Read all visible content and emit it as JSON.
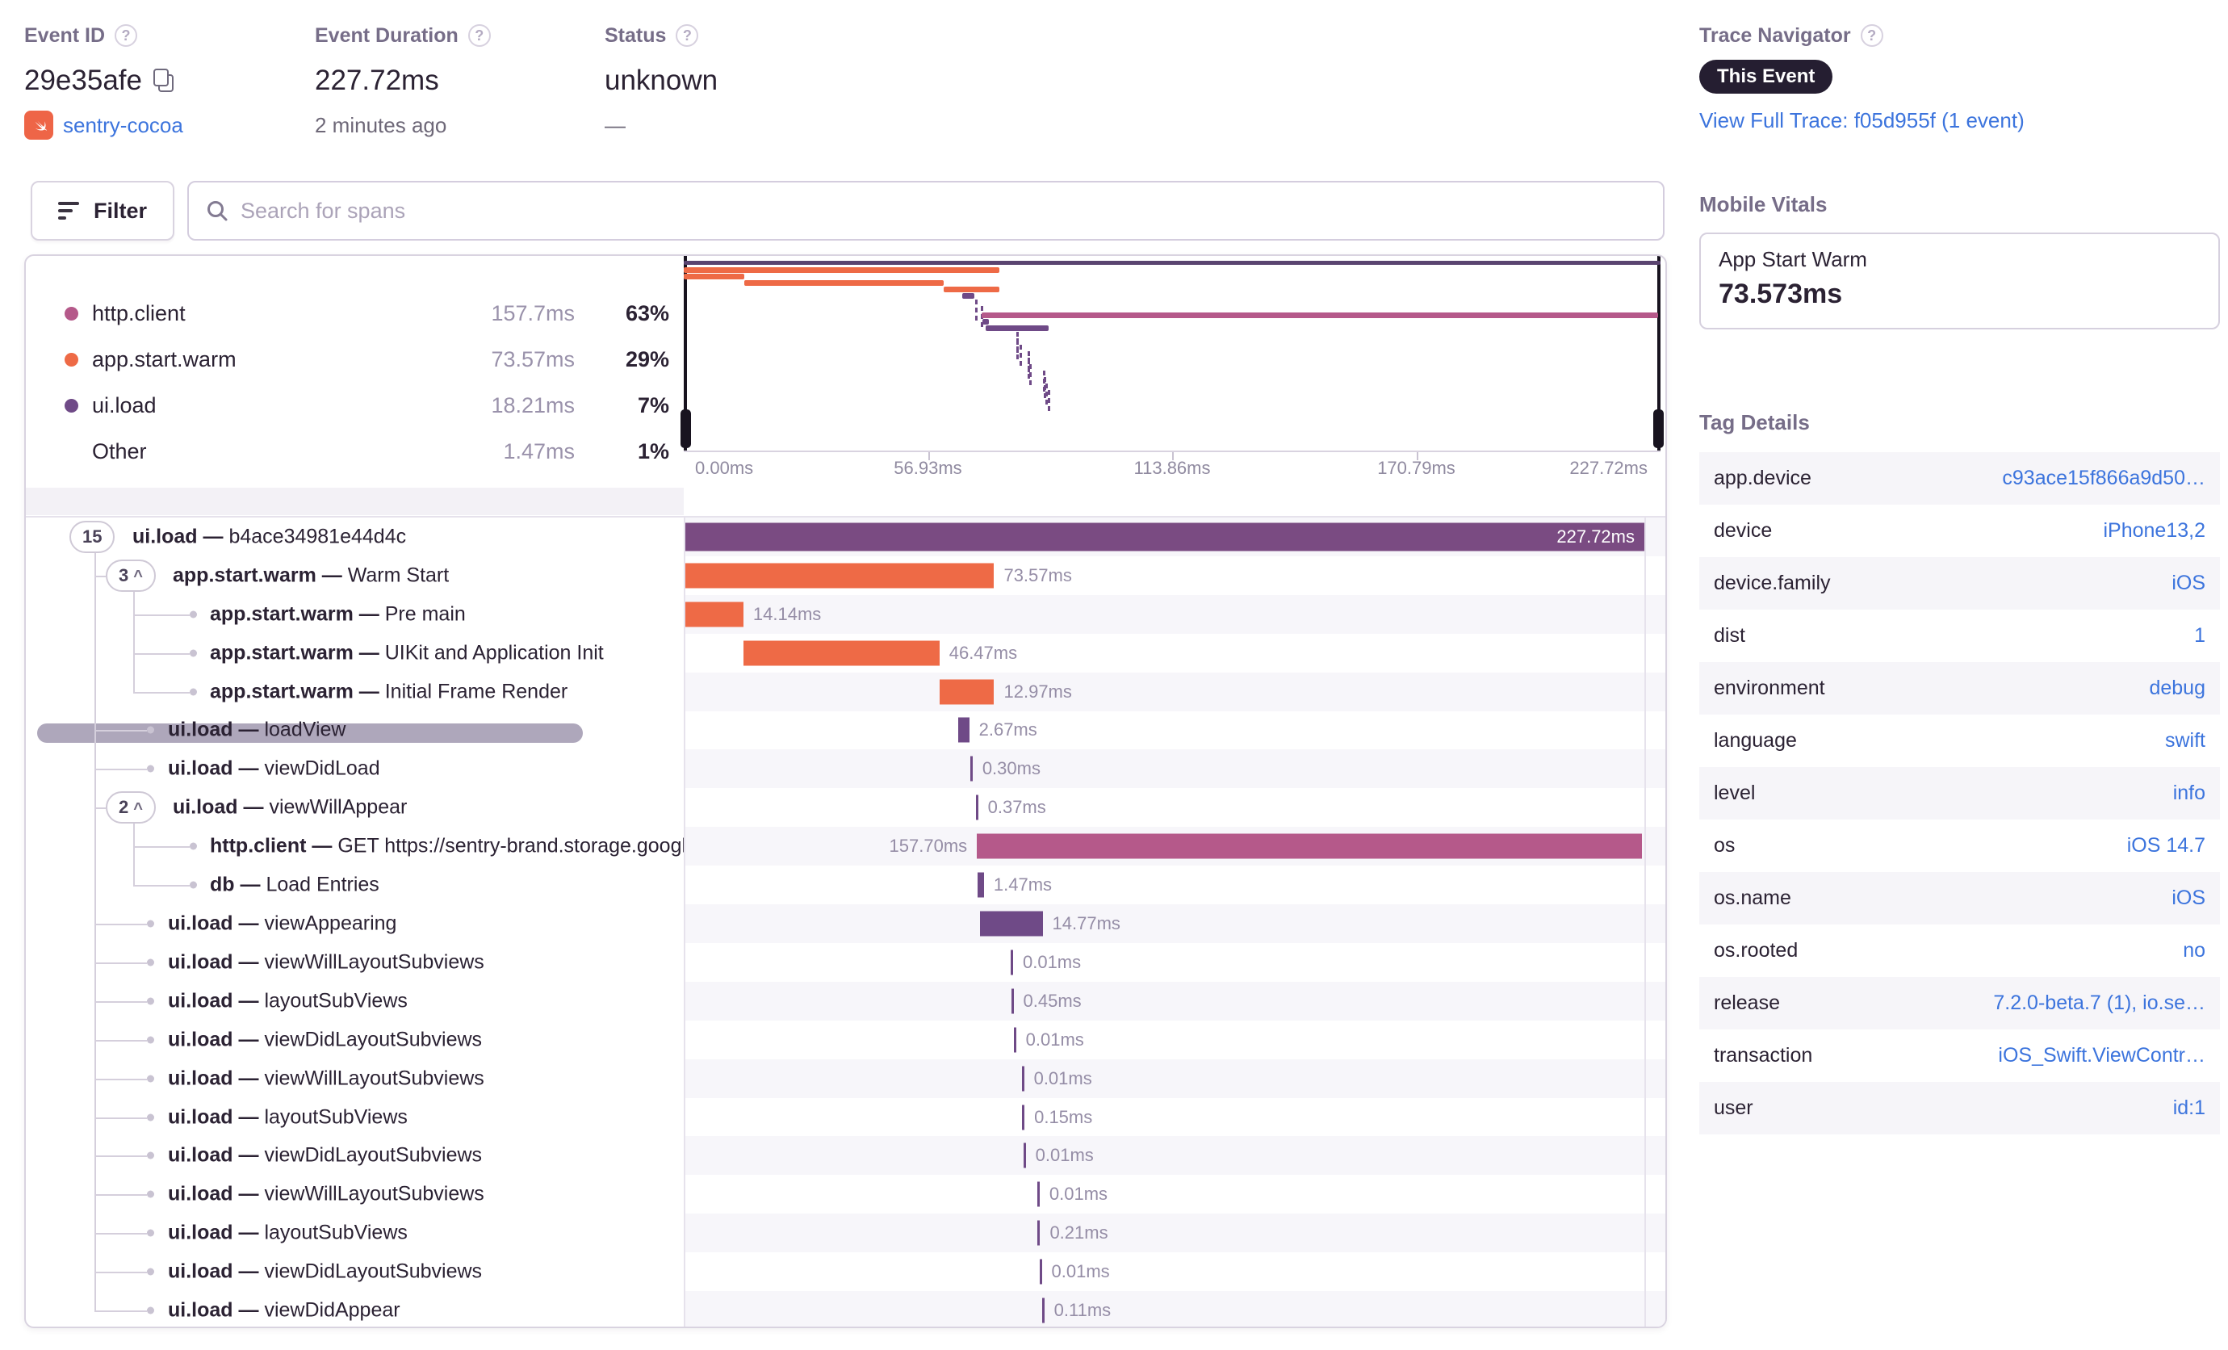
{
  "colors": {
    "orange": "#ee6a46",
    "magenta": "#b5598a",
    "purple": "#6f4a87",
    "root": "#7a4b82",
    "root_line": "#5a4470",
    "link_blue": "#3c74dd",
    "badge_dark": "#251e31"
  },
  "header": {
    "event_id": {
      "label": "Event ID",
      "value": "29e35afe",
      "project": "sentry-cocoa"
    },
    "event_duration": {
      "label": "Event Duration",
      "value": "227.72ms",
      "sub": "2 minutes ago"
    },
    "status": {
      "label": "Status",
      "value": "unknown",
      "sub": "—"
    },
    "trace_navigator": {
      "label": "Trace Navigator",
      "badge": "This Event",
      "link": "View Full Trace: f05d955f (1 event)"
    }
  },
  "toolbar": {
    "filter_label": "Filter",
    "search_placeholder": "Search for spans"
  },
  "legend": {
    "items": [
      {
        "name": "http.client",
        "duration": "157.7ms",
        "pct": "63%",
        "color": "magenta"
      },
      {
        "name": "app.start.warm",
        "duration": "73.57ms",
        "pct": "29%",
        "color": "orange"
      },
      {
        "name": "ui.load",
        "duration": "18.21ms",
        "pct": "7%",
        "color": "purple"
      },
      {
        "name": "Other",
        "duration": "1.47ms",
        "pct": "1%",
        "color": null
      }
    ]
  },
  "minimap": {
    "axis_labels": [
      "0.00ms",
      "56.93ms",
      "113.86ms",
      "170.79ms",
      "227.72ms"
    ]
  },
  "waterfall": {
    "total_ms": 227.72,
    "rows": [
      {
        "op": "ui.load",
        "desc": "b4ace34981e44d4c",
        "depth": 0,
        "pill": "15",
        "expandable": false,
        "start": 0,
        "dur": 227.72,
        "color": "root",
        "label": "227.72ms",
        "label_pos": "inside"
      },
      {
        "op": "app.start.warm",
        "desc": "Warm Start",
        "depth": 1,
        "pill": "3",
        "expandable": true,
        "start": 0,
        "dur": 73.57,
        "color": "orange",
        "label": "73.57ms"
      },
      {
        "op": "app.start.warm",
        "desc": "Pre main",
        "depth": 2,
        "start": 0,
        "dur": 14.14,
        "color": "orange",
        "label": "14.14ms"
      },
      {
        "op": "app.start.warm",
        "desc": "UIKit and Application Init",
        "depth": 2,
        "start": 14.14,
        "dur": 46.47,
        "color": "orange",
        "label": "46.47ms"
      },
      {
        "op": "app.start.warm",
        "desc": "Initial Frame Render",
        "depth": 2,
        "start": 60.61,
        "dur": 12.97,
        "color": "orange",
        "label": "12.97ms"
      },
      {
        "op": "ui.load",
        "desc": "loadView",
        "depth": 1,
        "start": 65.0,
        "dur": 2.67,
        "color": "purple",
        "label": "2.67ms"
      },
      {
        "op": "ui.load",
        "desc": "viewDidLoad",
        "depth": 1,
        "start": 67.9,
        "dur": 0.3,
        "color": "purple",
        "label": "0.30ms"
      },
      {
        "op": "ui.load",
        "desc": "viewWillAppear",
        "depth": 1,
        "pill": "2",
        "expandable": true,
        "start": 69.2,
        "dur": 0.37,
        "color": "purple",
        "label": "0.37ms"
      },
      {
        "op": "http.client",
        "desc": "GET https://sentry-brand.storage.googlea",
        "depth": 2,
        "start": 69.5,
        "dur": 157.7,
        "color": "magenta",
        "label": "157.70ms",
        "label_pos": "left"
      },
      {
        "op": "db",
        "desc": "Load Entries",
        "depth": 2,
        "start": 69.7,
        "dur": 1.47,
        "color": "purple",
        "label": "1.47ms"
      },
      {
        "op": "ui.load",
        "desc": "viewAppearing",
        "depth": 1,
        "start": 70.3,
        "dur": 14.77,
        "color": "purple",
        "label": "14.77ms"
      },
      {
        "op": "ui.load",
        "desc": "viewWillLayoutSubviews",
        "depth": 1,
        "start": 77.5,
        "dur": 0.01,
        "color": "purple",
        "label": "0.01ms"
      },
      {
        "op": "ui.load",
        "desc": "layoutSubViews",
        "depth": 1,
        "start": 77.6,
        "dur": 0.45,
        "color": "purple",
        "label": "0.45ms"
      },
      {
        "op": "ui.load",
        "desc": "viewDidLayoutSubviews",
        "depth": 1,
        "start": 78.2,
        "dur": 0.01,
        "color": "purple",
        "label": "0.01ms"
      },
      {
        "op": "ui.load",
        "desc": "viewWillLayoutSubviews",
        "depth": 1,
        "start": 80.1,
        "dur": 0.01,
        "color": "purple",
        "label": "0.01ms"
      },
      {
        "op": "ui.load",
        "desc": "layoutSubViews",
        "depth": 1,
        "start": 80.2,
        "dur": 0.15,
        "color": "purple",
        "label": "0.15ms"
      },
      {
        "op": "ui.load",
        "desc": "viewDidLayoutSubviews",
        "depth": 1,
        "start": 80.5,
        "dur": 0.01,
        "color": "purple",
        "label": "0.01ms"
      },
      {
        "op": "ui.load",
        "desc": "viewWillLayoutSubviews",
        "depth": 1,
        "start": 83.8,
        "dur": 0.01,
        "color": "purple",
        "label": "0.01ms"
      },
      {
        "op": "ui.load",
        "desc": "layoutSubViews",
        "depth": 1,
        "start": 83.9,
        "dur": 0.21,
        "color": "purple",
        "label": "0.21ms"
      },
      {
        "op": "ui.load",
        "desc": "viewDidLayoutSubviews",
        "depth": 1,
        "start": 84.3,
        "dur": 0.01,
        "color": "purple",
        "label": "0.01ms"
      },
      {
        "op": "ui.load",
        "desc": "viewDidAppear",
        "depth": 1,
        "start": 84.9,
        "dur": 0.11,
        "color": "purple",
        "label": "0.11ms"
      }
    ]
  },
  "sidebar": {
    "mobile_vitals": {
      "title": "Mobile Vitals",
      "card": {
        "name": "App Start Warm",
        "value": "73.573ms"
      }
    },
    "tag_details": {
      "title": "Tag Details",
      "rows": [
        {
          "key": "app.device",
          "value": "c93ace15f866a9d50…"
        },
        {
          "key": "device",
          "value": "iPhone13,2"
        },
        {
          "key": "device.family",
          "value": "iOS"
        },
        {
          "key": "dist",
          "value": "1"
        },
        {
          "key": "environment",
          "value": "debug"
        },
        {
          "key": "language",
          "value": "swift"
        },
        {
          "key": "level",
          "value": "info"
        },
        {
          "key": "os",
          "value": "iOS 14.7"
        },
        {
          "key": "os.name",
          "value": "iOS"
        },
        {
          "key": "os.rooted",
          "value": "no"
        },
        {
          "key": "release",
          "value": "7.2.0-beta.7 (1), io.se…"
        },
        {
          "key": "transaction",
          "value": "iOS_Swift.ViewContr…"
        },
        {
          "key": "user",
          "value": "id:1"
        }
      ]
    }
  }
}
